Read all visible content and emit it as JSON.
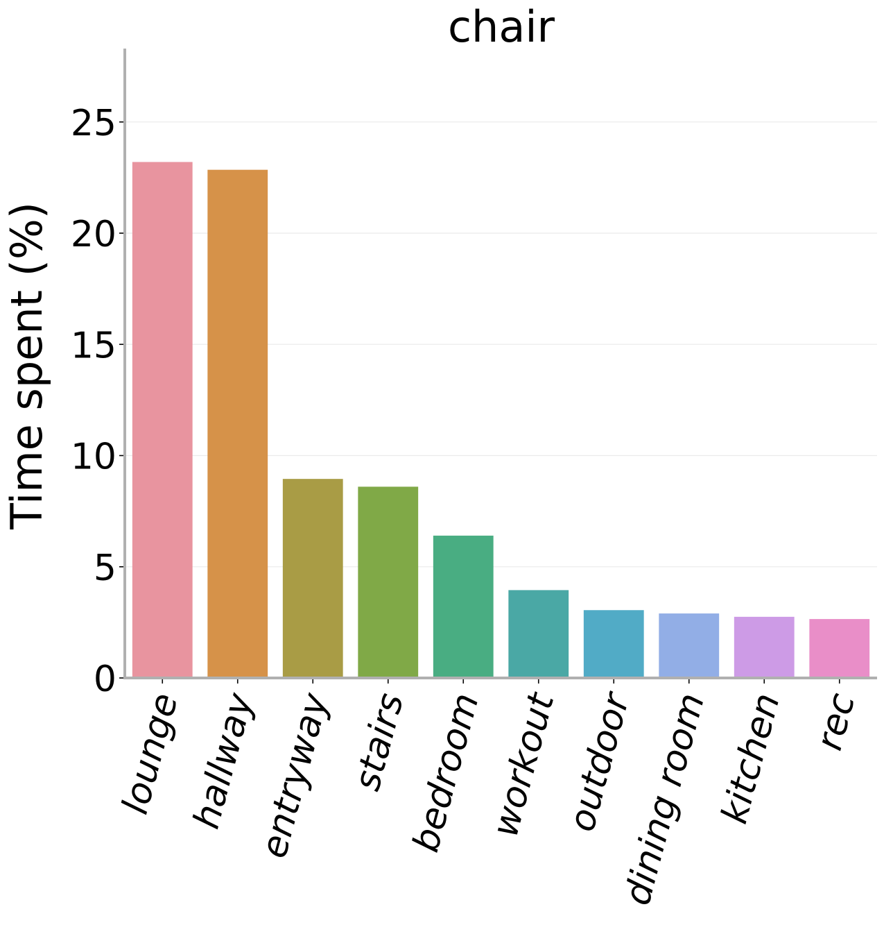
{
  "chart_data": {
    "type": "bar",
    "title": "chair",
    "xlabel": "",
    "ylabel": "Time spent (%)",
    "categories": [
      "lounge",
      "hallway",
      "entryway",
      "stairs",
      "bedroom",
      "workout",
      "outdoor",
      "dining room",
      "kitchen",
      "rec"
    ],
    "values": [
      23.2,
      22.85,
      8.95,
      8.6,
      6.4,
      3.95,
      3.05,
      2.9,
      2.75,
      2.65
    ],
    "colors": [
      "#e8949f",
      "#d69249",
      "#a99c45",
      "#80a947",
      "#49ad82",
      "#4aa8a5",
      "#51abc6",
      "#92aee6",
      "#cd9be6",
      "#e98ec8"
    ],
    "ylim": [
      0,
      28.3
    ],
    "yticks": [
      0,
      5,
      10,
      15,
      20,
      25
    ],
    "grid": true,
    "legend": "none"
  }
}
